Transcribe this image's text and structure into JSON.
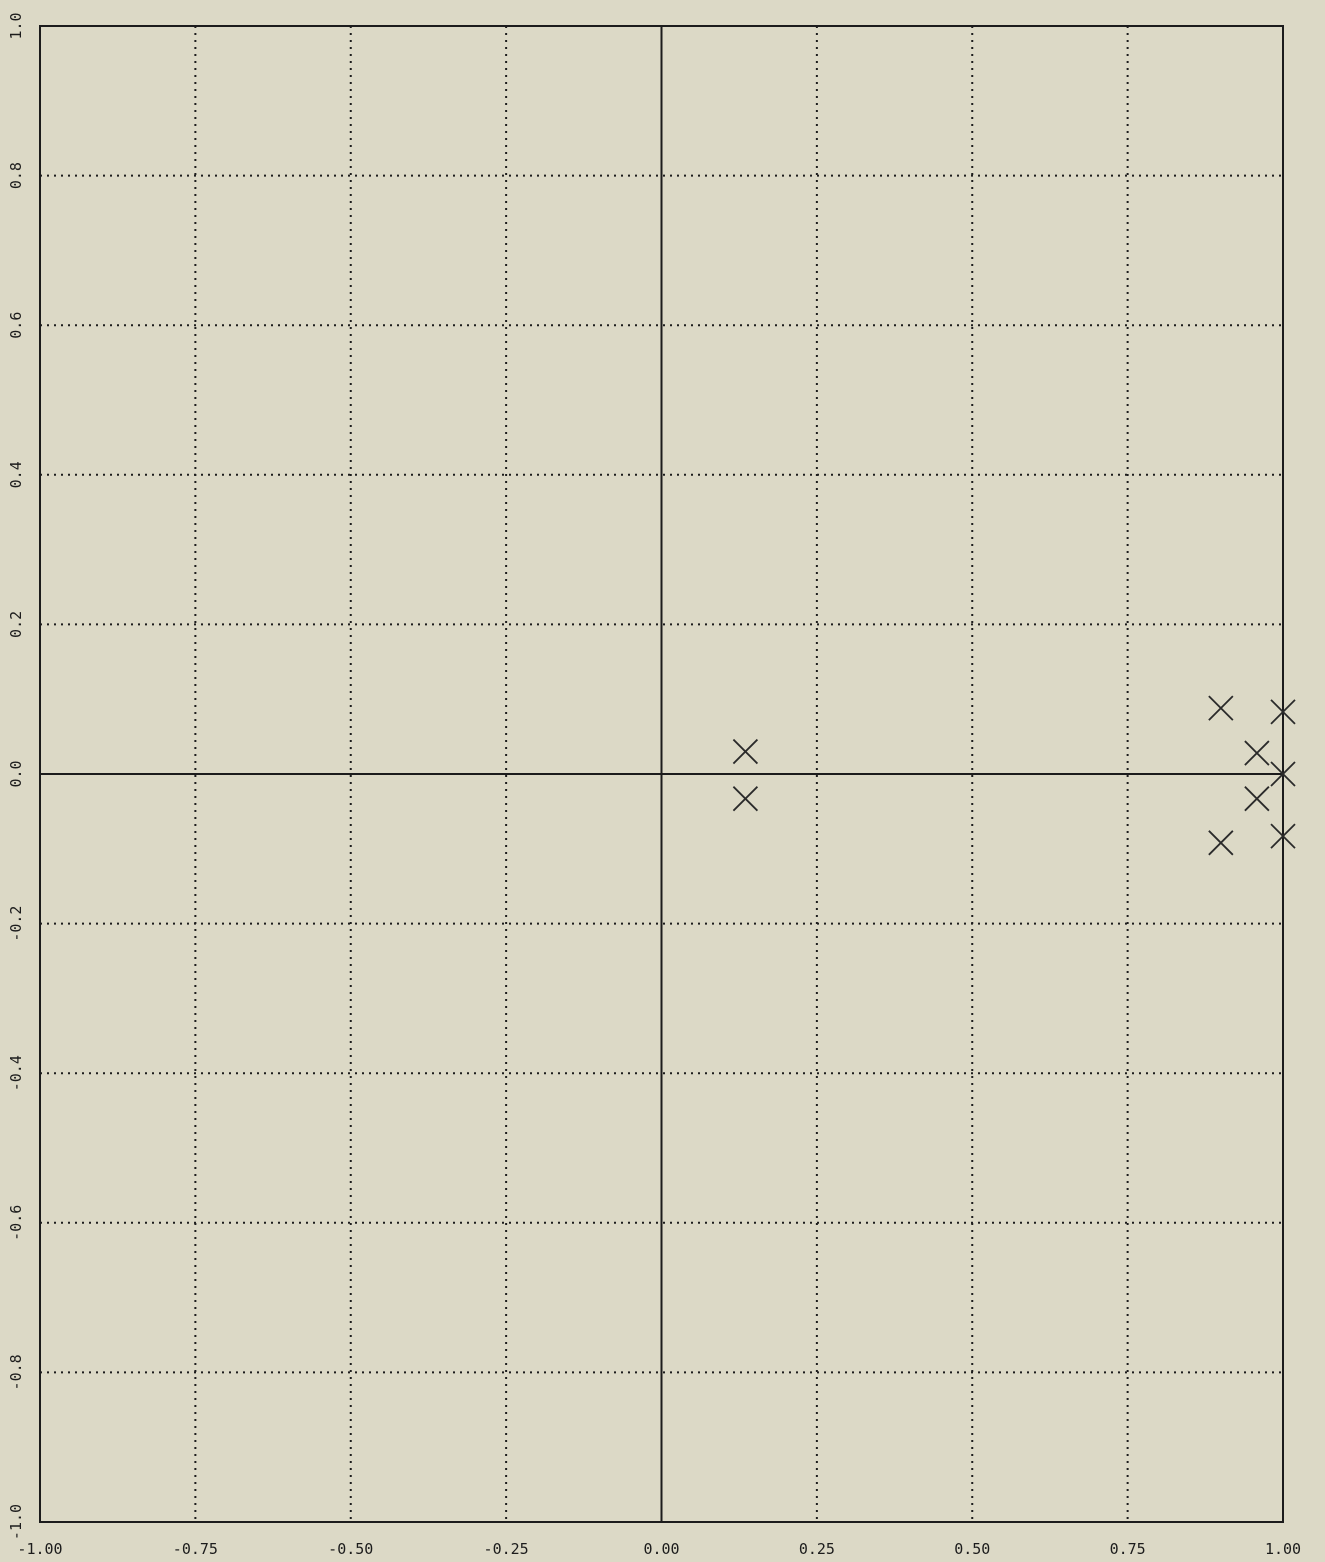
{
  "chart_data": {
    "type": "scatter",
    "title": "",
    "xlabel": "",
    "ylabel": "",
    "xlim": [
      -1.0,
      1.0
    ],
    "ylim": [
      -1.0,
      1.0
    ],
    "grid": true,
    "marker": "x",
    "x_ticks": [
      -1.0,
      -0.75,
      -0.5,
      -0.25,
      0.0,
      0.25,
      0.5,
      0.75,
      1.0
    ],
    "x_tick_labels": [
      "-1.00",
      "-0.75",
      "-0.50",
      "-0.25",
      "0.00",
      "0.25",
      "0.50",
      "0.75",
      "1.00"
    ],
    "y_ticks": [
      -1.0,
      -0.8,
      -0.6,
      -0.4,
      -0.2,
      0.0,
      0.2,
      0.4,
      0.6,
      0.8,
      1.0
    ],
    "y_tick_labels": [
      "-1.0",
      "-0.8",
      "-0.6",
      "-0.4",
      "-0.2",
      "0.0",
      "0.2",
      "0.4",
      "0.6",
      "0.8",
      "1.0"
    ],
    "series": [
      {
        "points": [
          {
            "x": 0.135,
            "y": 0.03
          },
          {
            "x": 0.135,
            "y": -0.033
          },
          {
            "x": 0.9,
            "y": 0.088
          },
          {
            "x": 0.9,
            "y": -0.092
          },
          {
            "x": 0.958,
            "y": 0.028
          },
          {
            "x": 0.958,
            "y": -0.033
          },
          {
            "x": 1.0,
            "y": 0.083
          },
          {
            "x": 1.0,
            "y": 0.0
          },
          {
            "x": 1.0,
            "y": -0.083
          }
        ]
      }
    ],
    "colors": {
      "background": "#dcd9c6",
      "ink": "#1c1c1c",
      "marker": "#2a2a2a"
    }
  }
}
